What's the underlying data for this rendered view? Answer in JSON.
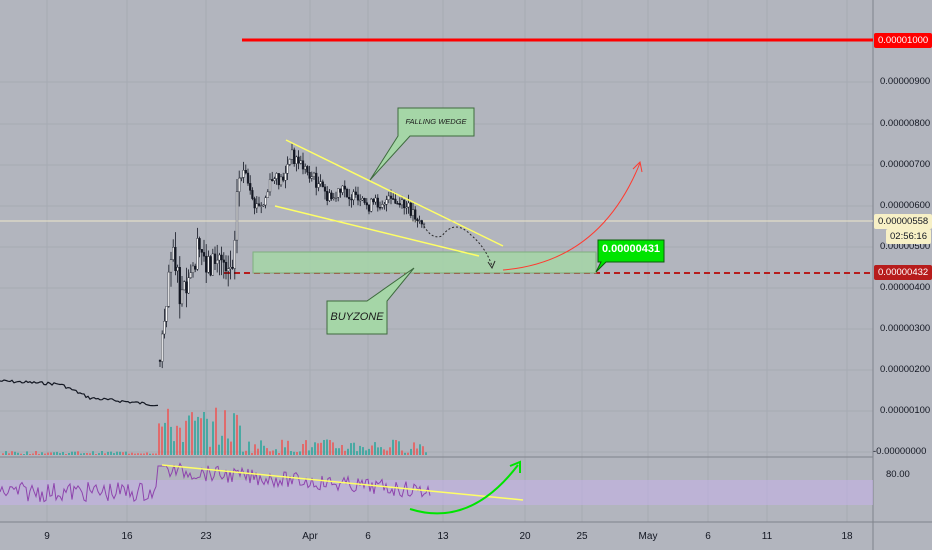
{
  "price_axis": {
    "labels": [
      "0.00000900",
      "0.00000800",
      "0.00000700",
      "0.00000600",
      "0.00000500",
      "0.00000400",
      "0.00000300",
      "0.00000200",
      "0.00000100",
      "-0.00000000"
    ],
    "resistance_badge": "0.00001000",
    "current_price_badge": "0.00000558",
    "countdown_badge": "02:56:16",
    "support_badge": "0.00000432"
  },
  "rsi_axis": {
    "level_label": "80.00"
  },
  "time_axis": {
    "labels": [
      "9",
      "16",
      "23",
      "Apr",
      "6",
      "13",
      "20",
      "25",
      "May",
      "6",
      "11",
      "18"
    ]
  },
  "annotations": {
    "falling_wedge": "FALLING WEDGE",
    "buyzone": "BUYZONE",
    "target_price": "0.00000431"
  },
  "colors": {
    "background": "#b2b5be",
    "resistance": "#ff0000",
    "support": "#b71c1c",
    "wedge_lines": "#ffff66",
    "zone_fill": "#a5d6a7",
    "target_badge": "#00e400",
    "rsi_line": "#8e44ad",
    "rsi_band": "#c5b3e6",
    "arrow_up_red": "#ff3b30",
    "arrow_up_green": "#00e400"
  }
}
